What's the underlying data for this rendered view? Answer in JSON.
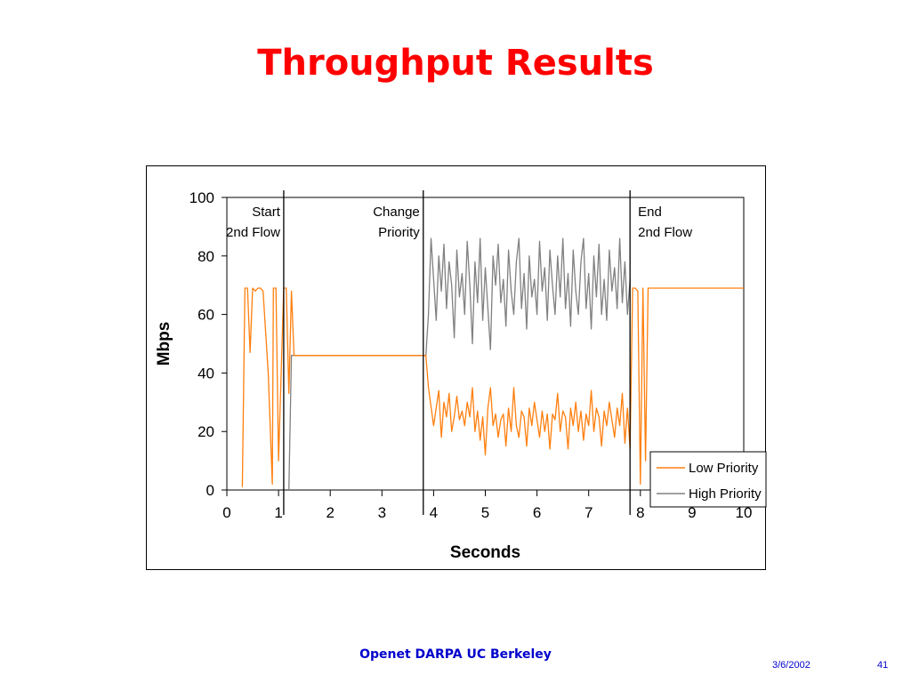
{
  "slide": {
    "title": "Throughput Results",
    "footer": "Openet DARPA UC Berkeley",
    "date": "3/6/2002",
    "page": "41"
  },
  "chart_data": {
    "type": "line",
    "xlabel": "Seconds",
    "ylabel": "Mbps",
    "xlim": [
      0,
      10
    ],
    "ylim": [
      0,
      100
    ],
    "xticks": [
      0,
      1,
      2,
      3,
      4,
      5,
      6,
      7,
      8,
      9,
      10
    ],
    "yticks": [
      0,
      20,
      40,
      60,
      80,
      100
    ],
    "grid": false,
    "legend": "bottom-right",
    "colors": {
      "low": "#ff7f0e",
      "high": "#808080"
    },
    "events": [
      {
        "x": 1.1,
        "line1": "Start",
        "line2": "2nd Flow",
        "align": "right"
      },
      {
        "x": 3.8,
        "line1": "Change",
        "line2": "Priority",
        "align": "right"
      },
      {
        "x": 7.8,
        "line1": "End",
        "line2": "2nd Flow",
        "align": "left"
      }
    ],
    "series": [
      {
        "name": "Low Priority",
        "key": "low",
        "points": [
          [
            0.3,
            1
          ],
          [
            0.35,
            69
          ],
          [
            0.4,
            69
          ],
          [
            0.45,
            47
          ],
          [
            0.5,
            69
          ],
          [
            0.55,
            68
          ],
          [
            0.6,
            69
          ],
          [
            0.65,
            69
          ],
          [
            0.7,
            68
          ],
          [
            0.8,
            40
          ],
          [
            0.88,
            2
          ],
          [
            0.9,
            69
          ],
          [
            0.95,
            69
          ],
          [
            1.0,
            10
          ],
          [
            1.1,
            69
          ],
          [
            1.15,
            69
          ],
          [
            1.2,
            33
          ],
          [
            1.25,
            68
          ],
          [
            1.3,
            46
          ],
          [
            1.35,
            46
          ],
          [
            1.5,
            46
          ],
          [
            1.7,
            46
          ],
          [
            1.9,
            46
          ],
          [
            2.1,
            46
          ],
          [
            2.3,
            46
          ],
          [
            2.5,
            46
          ],
          [
            2.7,
            46
          ],
          [
            2.9,
            46
          ],
          [
            3.1,
            46
          ],
          [
            3.3,
            46
          ],
          [
            3.5,
            46
          ],
          [
            3.7,
            46
          ],
          [
            3.85,
            46
          ],
          [
            3.9,
            35
          ],
          [
            4.0,
            22
          ],
          [
            4.05,
            28
          ],
          [
            4.1,
            34
          ],
          [
            4.15,
            18
          ],
          [
            4.2,
            30
          ],
          [
            4.25,
            25
          ],
          [
            4.3,
            33
          ],
          [
            4.35,
            20
          ],
          [
            4.4,
            25
          ],
          [
            4.45,
            32
          ],
          [
            4.5,
            24
          ],
          [
            4.55,
            27
          ],
          [
            4.6,
            22
          ],
          [
            4.65,
            30
          ],
          [
            4.7,
            25
          ],
          [
            4.75,
            35
          ],
          [
            4.8,
            20
          ],
          [
            4.85,
            27
          ],
          [
            4.9,
            17
          ],
          [
            4.95,
            25
          ],
          [
            5.0,
            12
          ],
          [
            5.05,
            28
          ],
          [
            5.1,
            35
          ],
          [
            5.15,
            22
          ],
          [
            5.2,
            26
          ],
          [
            5.25,
            18
          ],
          [
            5.3,
            24
          ],
          [
            5.35,
            26
          ],
          [
            5.4,
            15
          ],
          [
            5.45,
            28
          ],
          [
            5.5,
            20
          ],
          [
            5.55,
            35
          ],
          [
            5.6,
            22
          ],
          [
            5.65,
            18
          ],
          [
            5.7,
            27
          ],
          [
            5.75,
            25
          ],
          [
            5.8,
            15
          ],
          [
            5.85,
            28
          ],
          [
            5.9,
            22
          ],
          [
            5.95,
            30
          ],
          [
            6.0,
            24
          ],
          [
            6.05,
            18
          ],
          [
            6.1,
            27
          ],
          [
            6.15,
            20
          ],
          [
            6.2,
            26
          ],
          [
            6.25,
            14
          ],
          [
            6.3,
            26
          ],
          [
            6.35,
            24
          ],
          [
            6.4,
            33
          ],
          [
            6.45,
            20
          ],
          [
            6.5,
            27
          ],
          [
            6.55,
            25
          ],
          [
            6.6,
            14
          ],
          [
            6.65,
            28
          ],
          [
            6.7,
            22
          ],
          [
            6.75,
            30
          ],
          [
            6.8,
            20
          ],
          [
            6.85,
            27
          ],
          [
            6.9,
            17
          ],
          [
            6.95,
            26
          ],
          [
            7.0,
            22
          ],
          [
            7.05,
            34
          ],
          [
            7.1,
            20
          ],
          [
            7.15,
            28
          ],
          [
            7.2,
            25
          ],
          [
            7.25,
            15
          ],
          [
            7.3,
            27
          ],
          [
            7.35,
            22
          ],
          [
            7.4,
            30
          ],
          [
            7.45,
            24
          ],
          [
            7.5,
            18
          ],
          [
            7.55,
            28
          ],
          [
            7.6,
            22
          ],
          [
            7.65,
            33
          ],
          [
            7.7,
            16
          ],
          [
            7.75,
            28
          ],
          [
            7.8,
            14
          ],
          [
            7.85,
            69
          ],
          [
            7.9,
            69
          ],
          [
            7.95,
            68
          ],
          [
            8.0,
            2
          ],
          [
            8.05,
            69
          ],
          [
            8.1,
            10
          ],
          [
            8.15,
            69
          ],
          [
            8.25,
            69
          ],
          [
            8.5,
            69
          ],
          [
            9.0,
            69
          ],
          [
            9.5,
            69
          ],
          [
            9.8,
            69
          ],
          [
            10.0,
            69
          ]
        ]
      },
      {
        "name": "High Priority",
        "key": "high",
        "points": [
          [
            1.2,
            0
          ],
          [
            1.25,
            46
          ],
          [
            1.3,
            46
          ],
          [
            1.35,
            46
          ],
          [
            1.5,
            46
          ],
          [
            1.7,
            46
          ],
          [
            1.9,
            46
          ],
          [
            2.1,
            46
          ],
          [
            2.3,
            46
          ],
          [
            2.5,
            46
          ],
          [
            2.7,
            46
          ],
          [
            2.9,
            46
          ],
          [
            3.1,
            46
          ],
          [
            3.3,
            46
          ],
          [
            3.5,
            46
          ],
          [
            3.7,
            46
          ],
          [
            3.85,
            46
          ],
          [
            3.9,
            60
          ],
          [
            3.95,
            86
          ],
          [
            4.0,
            72
          ],
          [
            4.05,
            58
          ],
          [
            4.1,
            80
          ],
          [
            4.15,
            68
          ],
          [
            4.2,
            84
          ],
          [
            4.25,
            62
          ],
          [
            4.3,
            78
          ],
          [
            4.35,
            70
          ],
          [
            4.4,
            52
          ],
          [
            4.45,
            82
          ],
          [
            4.5,
            66
          ],
          [
            4.55,
            74
          ],
          [
            4.6,
            60
          ],
          [
            4.65,
            85
          ],
          [
            4.7,
            70
          ],
          [
            4.75,
            50
          ],
          [
            4.8,
            78
          ],
          [
            4.85,
            64
          ],
          [
            4.9,
            86
          ],
          [
            4.95,
            58
          ],
          [
            5.0,
            76
          ],
          [
            5.05,
            62
          ],
          [
            5.1,
            48
          ],
          [
            5.15,
            80
          ],
          [
            5.2,
            70
          ],
          [
            5.25,
            84
          ],
          [
            5.3,
            64
          ],
          [
            5.35,
            72
          ],
          [
            5.4,
            56
          ],
          [
            5.45,
            82
          ],
          [
            5.5,
            68
          ],
          [
            5.55,
            60
          ],
          [
            5.6,
            78
          ],
          [
            5.65,
            86
          ],
          [
            5.7,
            62
          ],
          [
            5.75,
            74
          ],
          [
            5.8,
            55
          ],
          [
            5.85,
            80
          ],
          [
            5.9,
            66
          ],
          [
            5.95,
            72
          ],
          [
            6.0,
            60
          ],
          [
            6.05,
            85
          ],
          [
            6.1,
            68
          ],
          [
            6.15,
            76
          ],
          [
            6.2,
            58
          ],
          [
            6.25,
            82
          ],
          [
            6.3,
            70
          ],
          [
            6.35,
            60
          ],
          [
            6.4,
            80
          ],
          [
            6.45,
            66
          ],
          [
            6.5,
            86
          ],
          [
            6.55,
            62
          ],
          [
            6.6,
            74
          ],
          [
            6.65,
            56
          ],
          [
            6.7,
            82
          ],
          [
            6.75,
            68
          ],
          [
            6.8,
            60
          ],
          [
            6.85,
            78
          ],
          [
            6.9,
            86
          ],
          [
            6.95,
            62
          ],
          [
            7.0,
            74
          ],
          [
            7.05,
            55
          ],
          [
            7.1,
            80
          ],
          [
            7.15,
            66
          ],
          [
            7.2,
            84
          ],
          [
            7.25,
            60
          ],
          [
            7.3,
            72
          ],
          [
            7.35,
            58
          ],
          [
            7.4,
            82
          ],
          [
            7.45,
            68
          ],
          [
            7.5,
            76
          ],
          [
            7.55,
            62
          ],
          [
            7.6,
            86
          ],
          [
            7.65,
            64
          ],
          [
            7.7,
            78
          ],
          [
            7.75,
            60
          ],
          [
            7.8,
            72
          ]
        ]
      }
    ]
  }
}
